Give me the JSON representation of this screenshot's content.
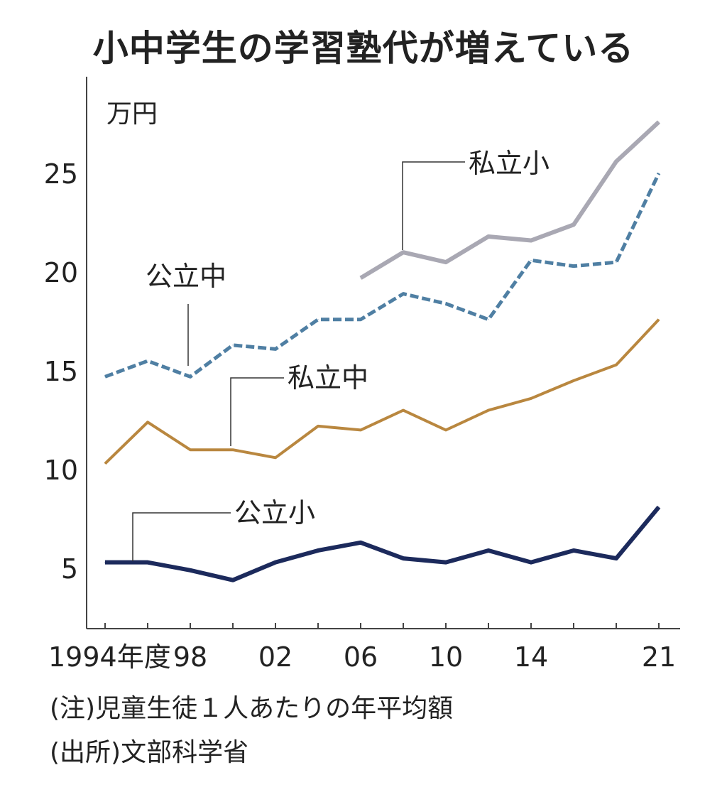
{
  "chart_data": {
    "type": "line",
    "title": "小中学生の学習塾代が増えている",
    "unit_label": "万円",
    "x": [
      1994,
      1996,
      1998,
      2000,
      2002,
      2004,
      2006,
      2008,
      2010,
      2012,
      2014,
      2016,
      2018,
      2021
    ],
    "x_tick_labels": [
      {
        "x": 1994,
        "label": "1994年度"
      },
      {
        "x": 1998,
        "label": "98"
      },
      {
        "x": 2002,
        "label": "02"
      },
      {
        "x": 2006,
        "label": "06"
      },
      {
        "x": 2010,
        "label": "10"
      },
      {
        "x": 2014,
        "label": "14"
      },
      {
        "x": 2021,
        "label": "21"
      }
    ],
    "y_ticks": [
      5,
      10,
      15,
      20,
      25
    ],
    "ylim": [
      1.9,
      29
    ],
    "grid": false,
    "series": [
      {
        "name": "私立小",
        "color": "#a9a8b3",
        "dashed": false,
        "values": [
          null,
          null,
          null,
          null,
          null,
          null,
          19.7,
          21.0,
          20.5,
          21.8,
          21.6,
          22.4,
          25.6,
          27.6
        ]
      },
      {
        "name": "公立中",
        "color": "#4f7fa3",
        "dashed": true,
        "values": [
          14.7,
          15.5,
          14.7,
          16.3,
          16.1,
          17.6,
          17.6,
          18.9,
          18.4,
          17.6,
          20.6,
          20.3,
          20.5,
          25.0
        ]
      },
      {
        "name": "私立中",
        "color": "#b9873f",
        "dashed": false,
        "values": [
          10.3,
          12.4,
          11.0,
          11.0,
          10.6,
          12.2,
          12.0,
          13.0,
          12.0,
          13.0,
          13.6,
          14.5,
          15.3,
          17.6
        ]
      },
      {
        "name": "公立小",
        "color": "#1c2a5c",
        "dashed": false,
        "values": [
          5.3,
          5.3,
          4.9,
          4.4,
          5.3,
          5.9,
          6.3,
          5.5,
          5.3,
          5.9,
          5.3,
          5.9,
          5.5,
          8.1
        ]
      }
    ],
    "notes": [
      "(注)児童生徒１人あたりの年平均額",
      "(出所)文部科学省"
    ]
  }
}
